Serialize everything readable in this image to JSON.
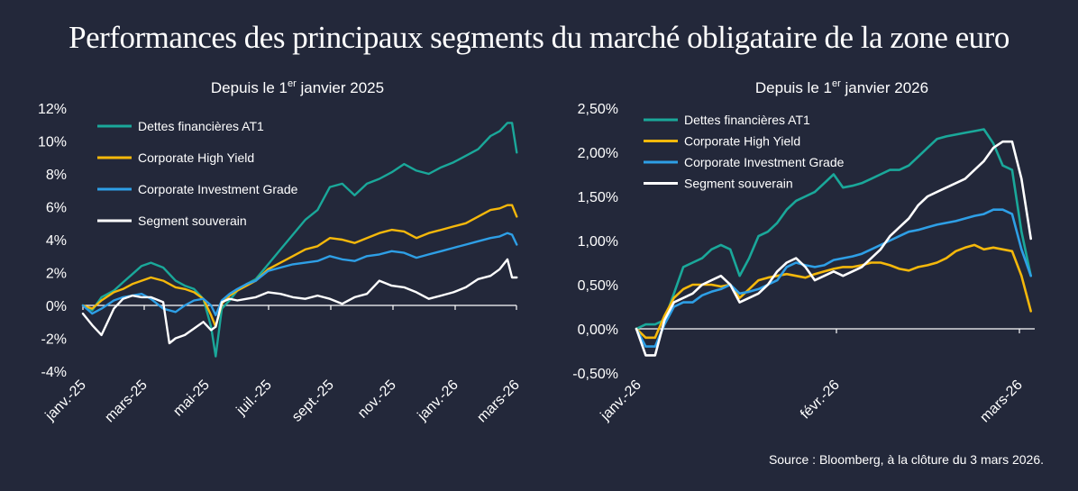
{
  "title": "Performances des principaux segments du marché obligataire de la zone euro",
  "source": "Source : Bloomberg, à la clôture du 3 mars 2026.",
  "colors": {
    "background": "#23283a",
    "at1": "#1aa89a",
    "high_yield": "#f5b80b",
    "investment_grade": "#2e9fe6",
    "souverain": "#ffffff"
  },
  "chart_data": [
    {
      "type": "line",
      "title": "Depuis le 1er janvier 2025",
      "title_main": "Depuis le 1",
      "title_sup": "er",
      "title_rest": " janvier 2025",
      "categories": [
        "janv.-25",
        "mars-25",
        "mai-25",
        "juil.-25",
        "sept.-25",
        "nov.-25",
        "janv.-26",
        "mars-26"
      ],
      "x_range": [
        0,
        14.1
      ],
      "ylim": [
        -4,
        12
      ],
      "yticks": [
        -4,
        -2,
        0,
        2,
        4,
        6,
        8,
        10,
        12
      ],
      "ytick_labels": [
        "-4%",
        "-2%",
        "0%",
        "2%",
        "4%",
        "6%",
        "8%",
        "10%",
        "12%"
      ],
      "legend_position": "top-left",
      "series": [
        {
          "name": "Dettes financières AT1",
          "color_key": "at1",
          "x": [
            0,
            0.3,
            0.6,
            1.0,
            1.3,
            1.6,
            1.9,
            2.2,
            2.6,
            3.0,
            3.3,
            3.6,
            3.9,
            4.15,
            4.3,
            4.5,
            4.75,
            5.0,
            5.3,
            5.6,
            6.0,
            6.4,
            6.8,
            7.2,
            7.6,
            8.0,
            8.4,
            8.8,
            9.2,
            9.6,
            10.0,
            10.4,
            10.8,
            11.2,
            11.6,
            12.0,
            12.4,
            12.8,
            13.2,
            13.5,
            13.75,
            13.9,
            14.05
          ],
          "values": [
            0,
            -0.3,
            0.5,
            0.9,
            1.4,
            1.9,
            2.4,
            2.6,
            2.3,
            1.5,
            1.2,
            1.0,
            0.4,
            -1.3,
            -3.1,
            -0.2,
            0.3,
            0.9,
            1.3,
            1.6,
            2.5,
            3.4,
            4.3,
            5.2,
            5.8,
            7.2,
            7.4,
            6.7,
            7.4,
            7.7,
            8.1,
            8.6,
            8.2,
            8.0,
            8.4,
            8.7,
            9.1,
            9.5,
            10.3,
            10.6,
            11.1,
            11.1,
            9.3
          ]
        },
        {
          "name": "Corporate High Yield",
          "color_key": "high_yield",
          "x": [
            0,
            0.3,
            0.6,
            1.0,
            1.3,
            1.6,
            1.9,
            2.2,
            2.6,
            3.0,
            3.3,
            3.6,
            3.9,
            4.15,
            4.3,
            4.5,
            4.75,
            5.0,
            5.3,
            5.6,
            6.0,
            6.4,
            6.8,
            7.2,
            7.6,
            8.0,
            8.4,
            8.8,
            9.2,
            9.6,
            10.0,
            10.4,
            10.8,
            11.2,
            11.6,
            12.0,
            12.4,
            12.8,
            13.2,
            13.5,
            13.75,
            13.9,
            14.05
          ],
          "values": [
            0,
            -0.2,
            0.3,
            0.8,
            1.0,
            1.3,
            1.5,
            1.7,
            1.5,
            1.1,
            1.0,
            0.8,
            0.4,
            -0.6,
            -1.3,
            0.1,
            0.6,
            0.9,
            1.2,
            1.5,
            2.2,
            2.6,
            3.0,
            3.4,
            3.6,
            4.1,
            4.0,
            3.8,
            4.1,
            4.4,
            4.6,
            4.5,
            4.1,
            4.4,
            4.6,
            4.8,
            5.0,
            5.4,
            5.8,
            5.9,
            6.1,
            6.1,
            5.4
          ]
        },
        {
          "name": "Corporate Investment Grade",
          "color_key": "investment_grade",
          "x": [
            0,
            0.3,
            0.6,
            1.0,
            1.3,
            1.6,
            1.9,
            2.2,
            2.6,
            3.0,
            3.3,
            3.6,
            3.9,
            4.15,
            4.3,
            4.5,
            4.75,
            5.0,
            5.3,
            5.6,
            6.0,
            6.4,
            6.8,
            7.2,
            7.6,
            8.0,
            8.4,
            8.8,
            9.2,
            9.6,
            10.0,
            10.4,
            10.8,
            11.2,
            11.6,
            12.0,
            12.4,
            12.8,
            13.2,
            13.5,
            13.75,
            13.9,
            14.05
          ],
          "values": [
            0,
            -0.5,
            -0.2,
            0.3,
            0.5,
            0.6,
            0.7,
            0.4,
            -0.2,
            -0.4,
            0.0,
            0.3,
            0.4,
            0.0,
            -0.6,
            0.3,
            0.7,
            1.0,
            1.3,
            1.5,
            2.1,
            2.3,
            2.5,
            2.6,
            2.7,
            3.0,
            2.8,
            2.7,
            3.0,
            3.1,
            3.3,
            3.2,
            2.9,
            3.1,
            3.3,
            3.5,
            3.7,
            3.9,
            4.1,
            4.2,
            4.4,
            4.3,
            3.7
          ]
        },
        {
          "name": "Segment souverain",
          "color_key": "souverain",
          "x": [
            0,
            0.3,
            0.6,
            1.0,
            1.3,
            1.6,
            1.9,
            2.2,
            2.6,
            2.8,
            3.0,
            3.3,
            3.6,
            3.9,
            4.15,
            4.3,
            4.5,
            4.75,
            5.0,
            5.3,
            5.6,
            6.0,
            6.4,
            6.8,
            7.2,
            7.6,
            8.0,
            8.4,
            8.8,
            9.2,
            9.6,
            10.0,
            10.4,
            10.8,
            11.2,
            11.6,
            12.0,
            12.4,
            12.8,
            13.2,
            13.5,
            13.75,
            13.9,
            14.05
          ],
          "values": [
            -0.5,
            -1.2,
            -1.8,
            -0.2,
            0.4,
            0.6,
            0.5,
            0.5,
            0.2,
            -2.3,
            -2.0,
            -1.8,
            -1.4,
            -1.0,
            -1.5,
            -1.3,
            0.2,
            0.4,
            0.3,
            0.4,
            0.5,
            0.8,
            0.7,
            0.5,
            0.4,
            0.6,
            0.4,
            0.1,
            0.5,
            0.7,
            1.5,
            1.2,
            1.1,
            0.8,
            0.4,
            0.6,
            0.8,
            1.1,
            1.6,
            1.8,
            2.2,
            2.8,
            1.7,
            1.7
          ]
        }
      ]
    },
    {
      "type": "line",
      "title": "Depuis le 1er janvier 2026",
      "title_main": "Depuis le 1",
      "title_sup": "er",
      "title_rest": " janvier 2026",
      "categories": [
        "janv.-26",
        "févr.-26",
        "mars-26"
      ],
      "x_range": [
        0,
        42.6
      ],
      "ylim": [
        -0.5,
        2.5
      ],
      "yticks": [
        -0.5,
        0,
        0.5,
        1.0,
        1.5,
        2.0,
        2.5
      ],
      "ytick_labels": [
        "-0,50%",
        "0,00%",
        "0,50%",
        "1,00%",
        "1,50%",
        "2,00%",
        "2,50%"
      ],
      "legend_position": "top-left",
      "series": [
        {
          "name": "Dettes financières AT1",
          "color_key": "at1",
          "x": [
            0,
            1,
            2,
            3,
            4,
            5,
            6,
            7,
            8,
            9,
            10,
            11,
            12,
            13,
            14,
            15,
            16,
            17,
            18,
            19,
            20,
            21,
            22,
            23,
            24,
            25,
            26,
            27,
            28,
            29,
            30,
            31,
            32,
            33,
            34,
            35,
            36,
            37,
            38,
            39,
            40,
            41,
            42
          ],
          "values": [
            0,
            0.05,
            0.05,
            0.1,
            0.4,
            0.7,
            0.75,
            0.8,
            0.9,
            0.95,
            0.9,
            0.6,
            0.8,
            1.05,
            1.1,
            1.2,
            1.35,
            1.45,
            1.5,
            1.55,
            1.65,
            1.75,
            1.6,
            1.62,
            1.65,
            1.7,
            1.75,
            1.8,
            1.8,
            1.85,
            1.95,
            2.05,
            2.15,
            2.18,
            2.2,
            2.22,
            2.24,
            2.26,
            2.1,
            1.85,
            1.8,
            1.1,
            0.6
          ]
        },
        {
          "name": "Corporate High Yield",
          "color_key": "high_yield",
          "x": [
            0,
            1,
            2,
            3,
            4,
            5,
            6,
            7,
            8,
            9,
            10,
            11,
            12,
            13,
            14,
            15,
            16,
            17,
            18,
            19,
            20,
            21,
            22,
            23,
            24,
            25,
            26,
            27,
            28,
            29,
            30,
            31,
            32,
            33,
            34,
            35,
            36,
            37,
            38,
            39,
            40,
            41,
            42
          ],
          "values": [
            0,
            -0.1,
            -0.1,
            0.15,
            0.35,
            0.45,
            0.5,
            0.5,
            0.5,
            0.48,
            0.5,
            0.35,
            0.45,
            0.55,
            0.58,
            0.6,
            0.62,
            0.6,
            0.58,
            0.62,
            0.65,
            0.68,
            0.7,
            0.7,
            0.72,
            0.75,
            0.75,
            0.72,
            0.68,
            0.66,
            0.7,
            0.72,
            0.75,
            0.8,
            0.88,
            0.92,
            0.95,
            0.9,
            0.92,
            0.9,
            0.88,
            0.6,
            0.2
          ]
        },
        {
          "name": "Corporate Investment Grade",
          "color_key": "investment_grade",
          "x": [
            0,
            1,
            2,
            3,
            4,
            5,
            6,
            7,
            8,
            9,
            10,
            11,
            12,
            13,
            14,
            15,
            16,
            17,
            18,
            19,
            20,
            21,
            22,
            23,
            24,
            25,
            26,
            27,
            28,
            29,
            30,
            31,
            32,
            33,
            34,
            35,
            36,
            37,
            38,
            39,
            40,
            41,
            42
          ],
          "values": [
            0,
            -0.2,
            -0.2,
            0.05,
            0.25,
            0.3,
            0.3,
            0.38,
            0.42,
            0.45,
            0.5,
            0.4,
            0.42,
            0.45,
            0.5,
            0.55,
            0.7,
            0.75,
            0.72,
            0.7,
            0.72,
            0.78,
            0.8,
            0.82,
            0.85,
            0.9,
            0.95,
            1.0,
            1.05,
            1.1,
            1.12,
            1.15,
            1.18,
            1.2,
            1.22,
            1.25,
            1.28,
            1.3,
            1.35,
            1.35,
            1.3,
            0.9,
            0.6
          ]
        },
        {
          "name": "Segment souverain",
          "color_key": "souverain",
          "x": [
            0,
            1,
            2,
            3,
            4,
            5,
            6,
            7,
            8,
            9,
            10,
            11,
            12,
            13,
            14,
            15,
            16,
            17,
            18,
            19,
            20,
            21,
            22,
            23,
            24,
            25,
            26,
            27,
            28,
            29,
            30,
            31,
            32,
            33,
            34,
            35,
            36,
            37,
            38,
            39,
            40,
            41,
            42
          ],
          "values": [
            0,
            -0.3,
            -0.3,
            0.1,
            0.3,
            0.35,
            0.4,
            0.5,
            0.55,
            0.6,
            0.5,
            0.3,
            0.35,
            0.4,
            0.5,
            0.65,
            0.75,
            0.8,
            0.7,
            0.55,
            0.6,
            0.65,
            0.6,
            0.65,
            0.7,
            0.8,
            0.9,
            1.05,
            1.15,
            1.25,
            1.4,
            1.5,
            1.55,
            1.6,
            1.65,
            1.7,
            1.8,
            1.9,
            2.05,
            2.12,
            2.12,
            1.7,
            1.02
          ]
        }
      ]
    }
  ]
}
